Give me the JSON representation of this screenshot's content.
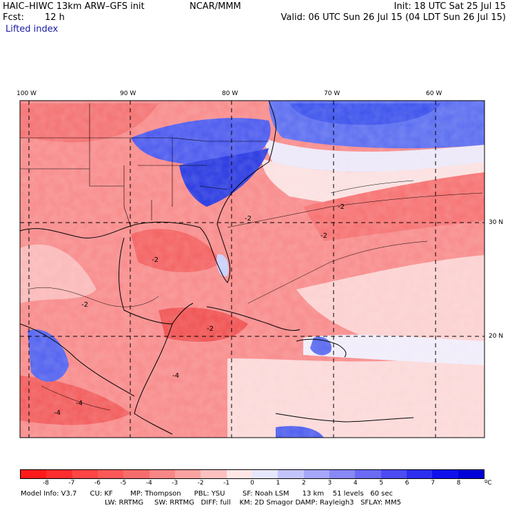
{
  "header": {
    "model": "HAIC–HIWC 13km ARW–GFS init",
    "org": "NCAR/MMM",
    "fcst_label": "Fcst:",
    "fcst_value": "12 h",
    "init": "Init: 18 UTC Sat 25 Jul 15",
    "valid": "Valid: 06 UTC Sun 26 Jul 15 (04 LDT Sun 26 Jul 15)",
    "field": "Lifted index"
  },
  "map": {
    "lon_labels": [
      "100 W",
      "90 W",
      "80 W",
      "70 W",
      "60 W"
    ],
    "lat_labels": [
      "30 N",
      "20 N"
    ],
    "contour_labels": [
      "-2",
      "-2",
      "-2",
      "-2",
      "-2",
      "-2",
      "-4",
      "-4",
      "-4"
    ]
  },
  "colorbar": {
    "labels": [
      "-8",
      "-7",
      "-6",
      "-5",
      "-4",
      "-3",
      "-2",
      "-1",
      "0",
      "1",
      "2",
      "3",
      "4",
      "5",
      "6",
      "7",
      "8"
    ],
    "unit": "ºC",
    "colors": [
      "#ff1a1a",
      "#ff2e2e",
      "#ff4545",
      "#fd5858",
      "#f86c6c",
      "#f88686",
      "#faa2a2",
      "#fcc0c0",
      "#ffe6e6",
      "#e6e6ff",
      "#c4c4fd",
      "#a6a6fa",
      "#8888f6",
      "#6a6af4",
      "#4c4cf2",
      "#2e2ef0",
      "#1010ee",
      "#0000d8"
    ]
  },
  "footer": {
    "line1": "Model Info: V3.7      CU: KF        MP: Thompson      PBL: YSU        SF: Noah LSM      13 km    51 levels   60 sec",
    "line2": "LW: RRTMG     SW: RRTMG   DIFF: full    KM: 2D Smagor DAMP: Rayleigh3   SFLAY: MM5"
  }
}
